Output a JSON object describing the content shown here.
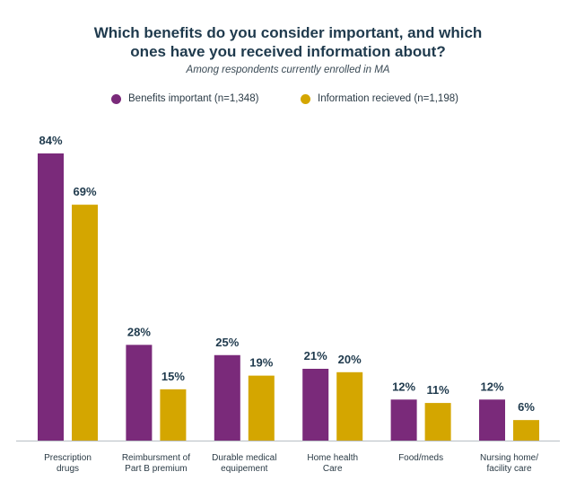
{
  "chart_data": {
    "type": "bar",
    "title_lines": [
      "Which benefits do you consider important, and which",
      "ones have you received information about?"
    ],
    "subtitle": "Among respondents currently enrolled in MA",
    "categories": [
      [
        "Prescription",
        "drugs"
      ],
      [
        "Reimbursment of",
        "Part B premium"
      ],
      [
        "Durable medical",
        "equipement"
      ],
      [
        "Home health",
        "Care"
      ],
      [
        "Food/meds"
      ],
      [
        "Nursing home/",
        "facility care"
      ]
    ],
    "series": [
      {
        "name": "Benefits important (n=1,348)",
        "color": "#7a2a7a",
        "values": [
          84,
          28,
          25,
          21,
          12,
          12
        ]
      },
      {
        "name": "Information recieved (n=1,198)",
        "color": "#d4a600",
        "values": [
          69,
          15,
          19,
          20,
          11,
          6
        ]
      }
    ],
    "value_suffix": "%",
    "ylim": [
      0,
      84
    ],
    "grid": false,
    "legend_position": "top"
  }
}
